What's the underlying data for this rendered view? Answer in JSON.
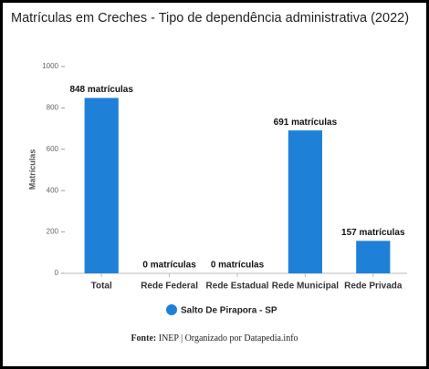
{
  "chart_data": {
    "type": "bar",
    "title": "Matrículas em Creches - Tipo de dependência administrativa (2022)",
    "y_label": "Matrículas",
    "categories": [
      "Total",
      "Rede Federal",
      "Rede Estadual",
      "Rede Municipal",
      "Rede Privada"
    ],
    "series": [
      {
        "name": "Salto De Pirapora - SP",
        "color": "#1f80d8",
        "values": [
          848,
          0,
          0,
          691,
          157
        ],
        "value_labels": [
          "848 matrículas",
          "0 matrículas",
          "0 matrículas",
          "691 matrículas",
          "157 matrículas"
        ]
      }
    ],
    "ylim": [
      0,
      1000
    ],
    "yticks": [
      0,
      200,
      400,
      600,
      800,
      1000
    ],
    "grid": false,
    "source_label": "Fonte:",
    "source": "INEP | Organizado por Datapedia.info"
  }
}
